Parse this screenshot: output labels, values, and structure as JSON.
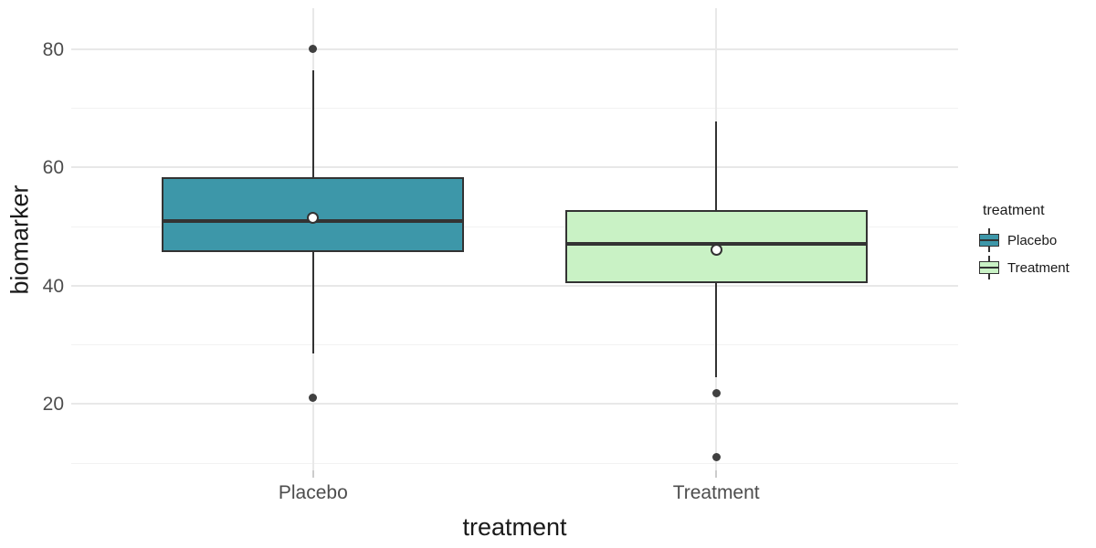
{
  "chart_data": {
    "type": "boxplot",
    "title": "",
    "xlabel": "treatment",
    "ylabel": "biomarker",
    "categories": [
      "Placebo",
      "Treatment"
    ],
    "ylim": [
      8.8,
      86.9
    ],
    "y_major_ticks": [
      20,
      40,
      60,
      80
    ],
    "y_minor_ticks": [
      10,
      30,
      50,
      70
    ],
    "grid": true,
    "legend": {
      "title": "treatment",
      "position": "right"
    },
    "series": [
      {
        "name": "Placebo",
        "fill": "#3D97A9",
        "whisker_low": 28.5,
        "q1": 45.7,
        "median": 50.9,
        "q3": 58.3,
        "whisker_high": 76.4,
        "mean": 51.5,
        "outliers": [
          80,
          21
        ]
      },
      {
        "name": "Treatment",
        "fill": "#C9F2C5",
        "whisker_low": 24.5,
        "q1": 40.5,
        "median": 47.1,
        "q3": 52.8,
        "whisker_high": 67.7,
        "mean": 46.1,
        "outliers": [
          21.8,
          11.1
        ]
      }
    ],
    "colors": {
      "box_border": "#333333",
      "median_line": "#333333",
      "whisker_line": "#333333",
      "outlier_dot": "#404040",
      "mean_dot_fill": "#ffffff",
      "mean_dot_border": "#333333",
      "grid_major": "#e8e8e8",
      "grid_minor": "#f2f2f2",
      "tick_mark": "#cccccc",
      "tick_text": "#4d4d4d",
      "title_text": "#1a1a1a"
    }
  }
}
